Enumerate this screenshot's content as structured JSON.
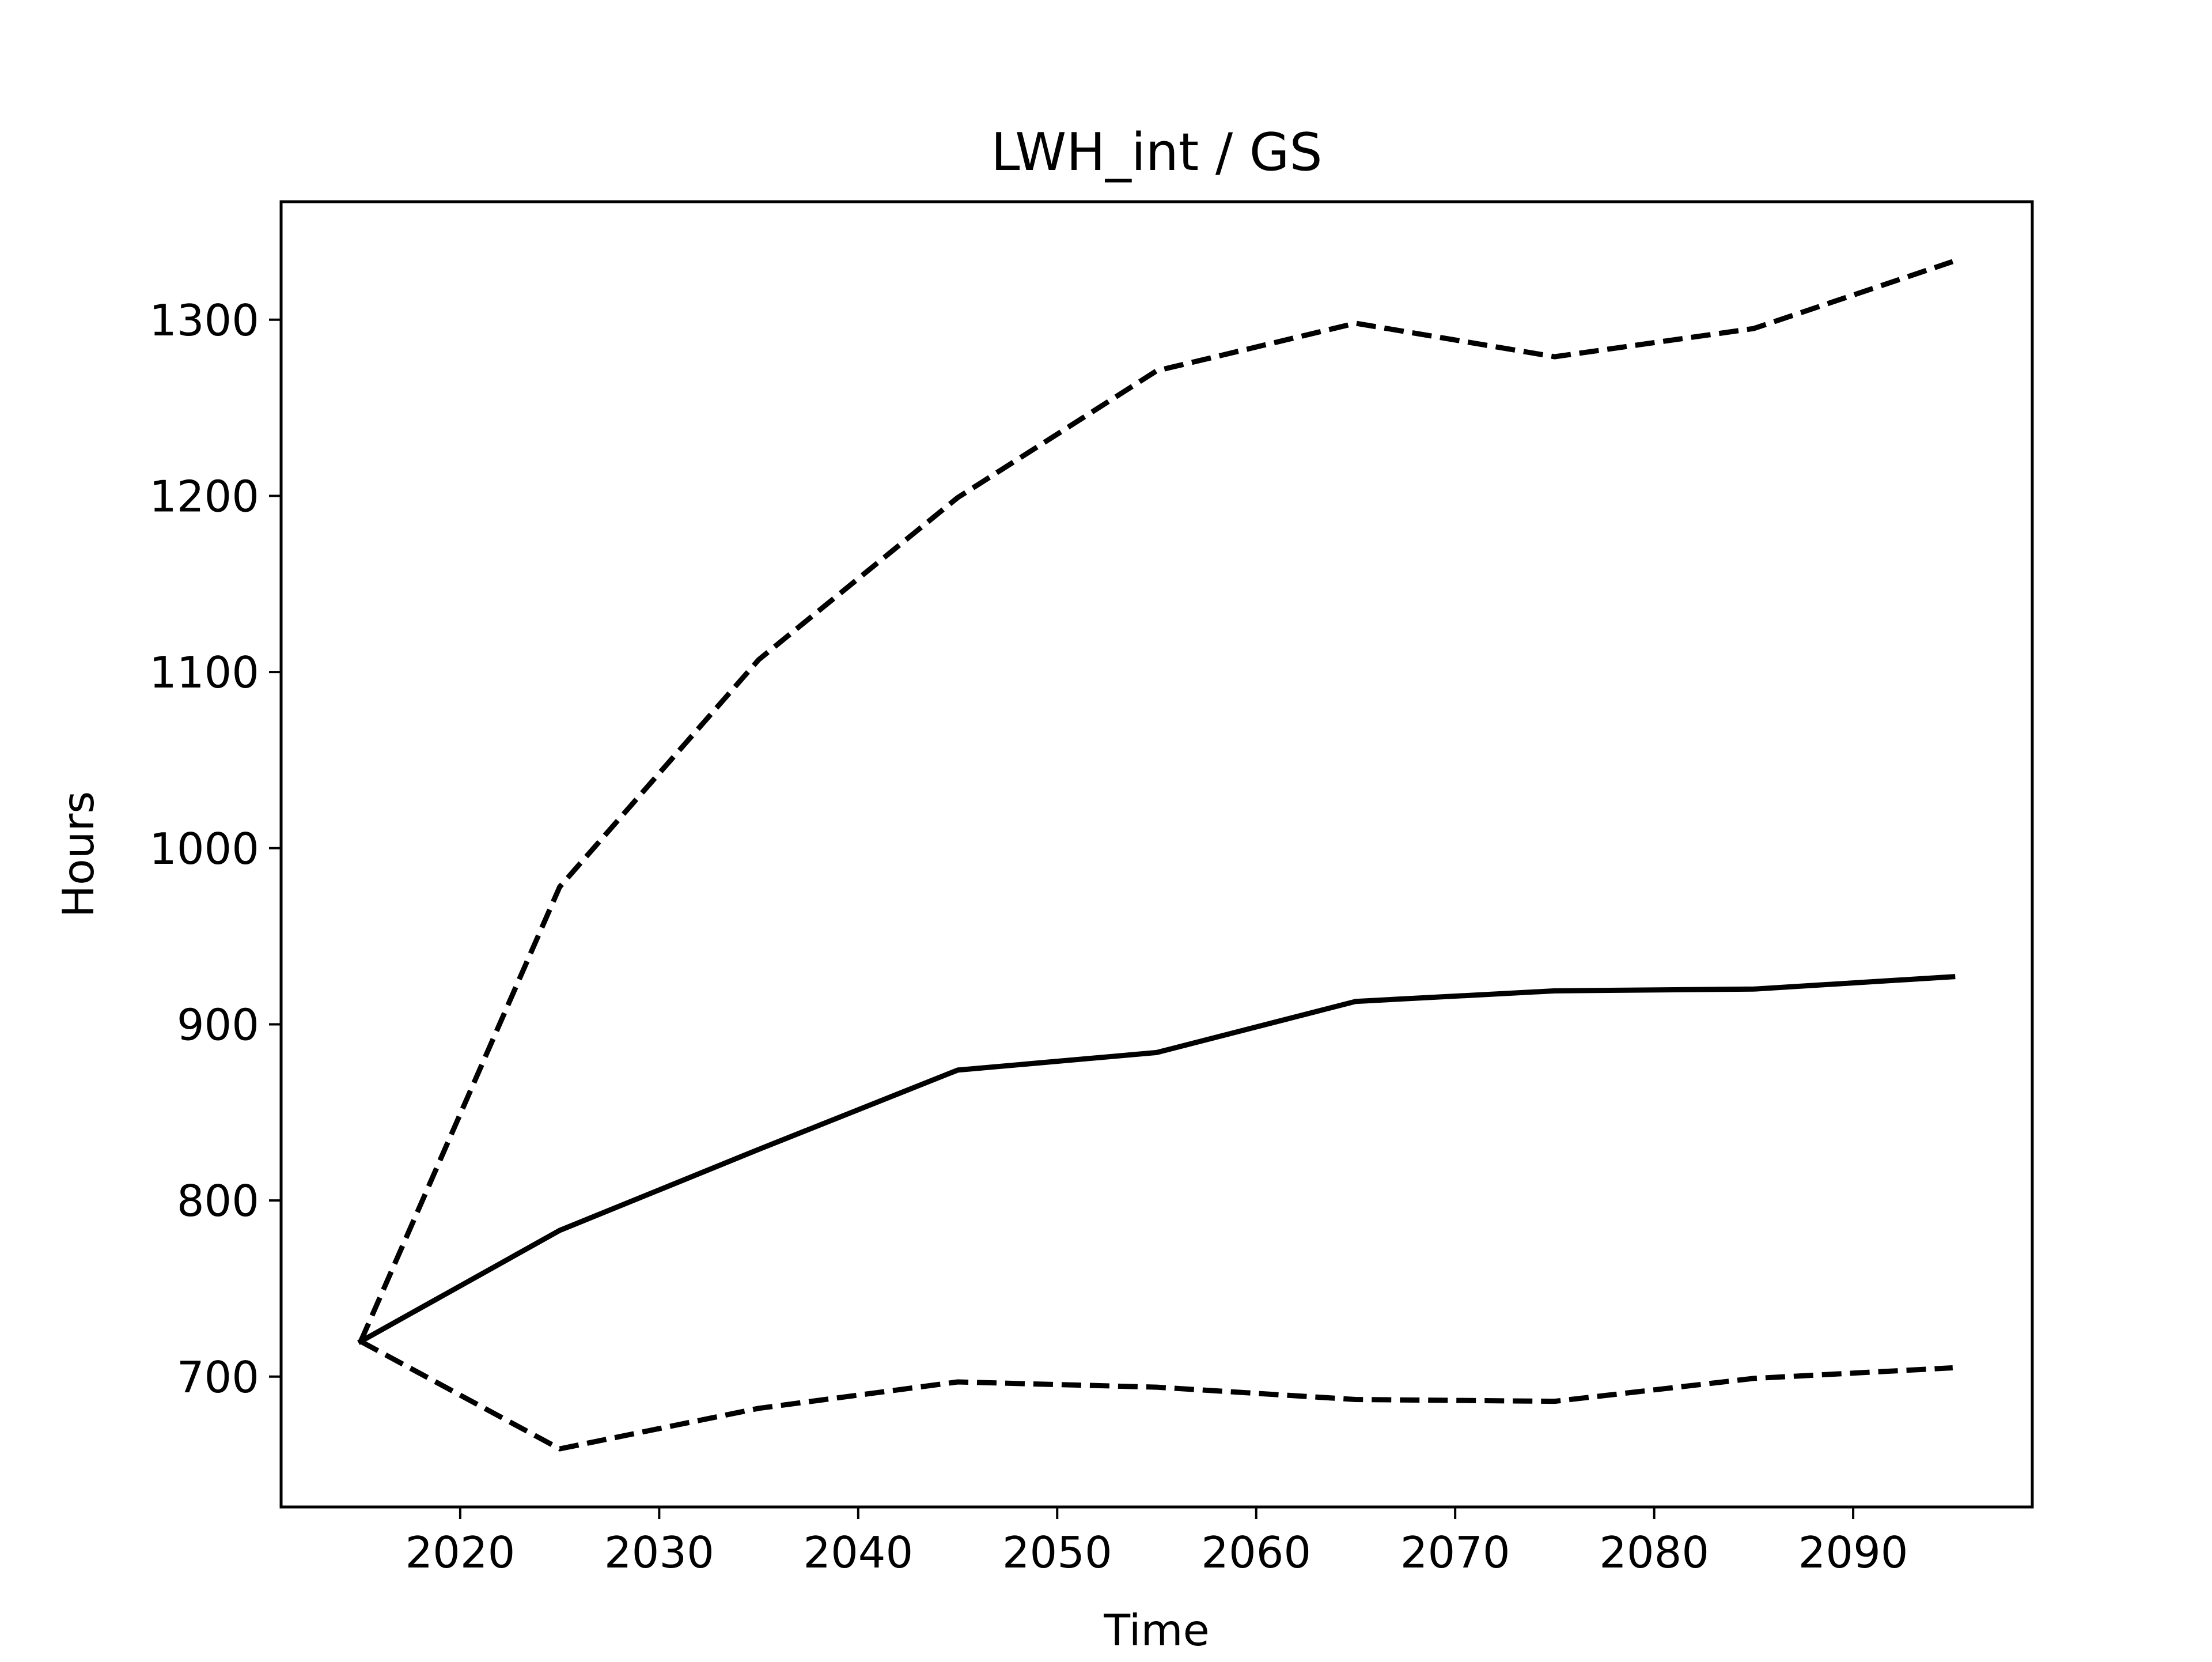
{
  "chart_data": {
    "type": "line",
    "title": "LWH_int / GS",
    "xlabel": "Time",
    "ylabel": "Hours",
    "xlim": [
      2011,
      2099
    ],
    "ylim": [
      626,
      1367
    ],
    "x_ticks": [
      2020,
      2030,
      2040,
      2050,
      2060,
      2070,
      2080,
      2090
    ],
    "y_ticks": [
      700,
      800,
      900,
      1000,
      1100,
      1200,
      1300
    ],
    "grid": false,
    "x": [
      2015,
      2025,
      2035,
      2045,
      2055,
      2065,
      2075,
      2085,
      2095
    ],
    "series": [
      {
        "style": "solid",
        "color": "#000000",
        "values": [
          720,
          783,
          829,
          874,
          884,
          913,
          919,
          920,
          927
        ]
      },
      {
        "style": "dashed",
        "color": "#000000",
        "values": [
          720,
          978,
          1107,
          1199,
          1271,
          1298,
          1279,
          1295,
          1333
        ]
      },
      {
        "style": "dashed",
        "color": "#000000",
        "values": [
          720,
          659,
          682,
          697,
          694,
          687,
          686,
          699,
          705
        ]
      }
    ]
  }
}
